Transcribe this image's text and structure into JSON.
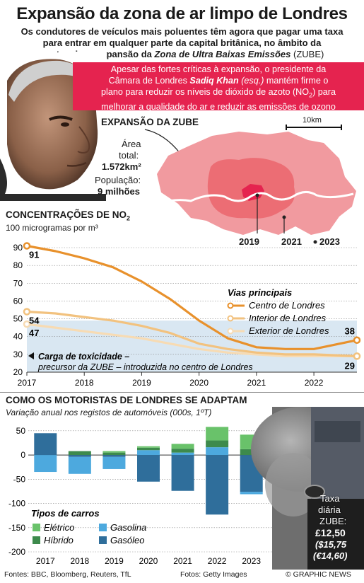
{
  "header": {
    "title": "Expansão da zona de ar limpo de Londres",
    "subtitle_line1": "Os condutores de veículos mais poluentes têm agora que pagar uma taxa",
    "subtitle_line2": "para entrar em qualquer parte da capital britânica, no âmbito da",
    "subtitle_line3_a": "contenciosa expansão da ",
    "subtitle_line3_b": "Zona de Ultra Baixas Emissões",
    "subtitle_line3_c": " (ZUBE)"
  },
  "banner": {
    "line1": "Apesar das fortes críticas à expansão, o presidente da",
    "line2_a": "Câmara de Londres ",
    "line2_b": "Sadiq Khan",
    "line2_c": " (esq.)",
    "line2_d": " mantém firme o",
    "line3": "plano para reduzir os níveis de dióxido de azoto (NO",
    "line3_sub": "2",
    "line3_end": ") para",
    "line4": "melhorar a qualidade do ar e reduzir as emissões de ozono"
  },
  "map": {
    "heading": "EXPANSÃO DA ZUBE",
    "scale": "10km",
    "area_label": "Área",
    "area_label2": "total:",
    "area_value": "1.572km²",
    "population_label": "População:",
    "population_value": "9 milhões",
    "years": [
      "2019",
      "2021",
      "2023"
    ],
    "colors": {
      "zone2023": "#f19a9f",
      "zone2021": "#ec6d74",
      "zone2019": "#e5234f",
      "river": "#ffffff"
    }
  },
  "chart_data": [
    {
      "type": "line",
      "title": "CONCENTRAÇÕES DE NO",
      "title_sub": "2",
      "ylabel": "100 microgramas por m³",
      "x_ticks": [
        "2017",
        "2018",
        "2019",
        "2020",
        "2021",
        "2022"
      ],
      "y_ticks": [
        20,
        30,
        40,
        50,
        60,
        70,
        80,
        90
      ],
      "ylim": [
        20,
        90
      ],
      "xlim": [
        2017,
        2022.75
      ],
      "legend_title": "Vias principais",
      "legend_placement": "right",
      "series": [
        {
          "name": "Centro de Londres",
          "color": "#e8912c",
          "start_label": "91",
          "end_label": "38",
          "x": [
            2017,
            2017.5,
            2018,
            2018.5,
            2019,
            2019.5,
            2020,
            2020.5,
            2021,
            2021.5,
            2022,
            2022.75
          ],
          "y": [
            91,
            88,
            84,
            79,
            71,
            61,
            49,
            39,
            34,
            33,
            33,
            38
          ]
        },
        {
          "name": "Interior de Londres",
          "color": "#f2c27f",
          "start_label": "54",
          "end_label": "",
          "x": [
            2017,
            2017.5,
            2018,
            2018.5,
            2019,
            2019.5,
            2020,
            2020.5,
            2021,
            2021.5,
            2022,
            2022.75
          ],
          "y": [
            54,
            53,
            51,
            49,
            46,
            42,
            36,
            33,
            31,
            30,
            30,
            29
          ]
        },
        {
          "name": "Exterior de Londres",
          "color": "#f7dbb3",
          "start_label": "47",
          "end_label": "29",
          "x": [
            2017,
            2017.5,
            2018,
            2018.5,
            2019,
            2019.5,
            2020,
            2020.5,
            2021,
            2021.5,
            2022,
            2022.75
          ],
          "y": [
            47,
            45,
            43,
            41,
            39,
            36,
            33,
            31,
            30,
            29,
            29,
            29
          ]
        }
      ],
      "annotation_a": "Carga de toxicidade –",
      "annotation_b": "precursor da ZUBE – introduzida no centro de Londres",
      "shade_color": "#d9e7f2"
    },
    {
      "type": "bar",
      "title": "COMO OS MOTORISTAS DE LONDRES SE ADAPTAM",
      "subtitle": "Variação anual nos registos de automóveis (000s, 1ºT)",
      "categories": [
        "2017",
        "2018",
        "2019",
        "2020",
        "2021",
        "2022",
        "2023"
      ],
      "y_ticks": [
        50,
        0,
        -50,
        -100,
        -150,
        -200
      ],
      "ylim": [
        -200,
        60
      ],
      "legend_title": "Tipos de carros",
      "series": [
        {
          "name": "Gasóleo",
          "color": "#2f6e9b",
          "values": [
            45,
            -4,
            -4,
            -55,
            -74,
            -123,
            -76
          ]
        },
        {
          "name": "Gasolina",
          "color": "#4da9de",
          "values": [
            -35,
            -35,
            -25,
            10,
            5,
            16,
            -5
          ]
        },
        {
          "name": "Híbrido",
          "color": "#3d8a4c",
          "values": [
            0,
            8,
            5,
            5,
            8,
            14,
            12
          ]
        },
        {
          "name": "Elétrico",
          "color": "#69c26a",
          "values": [
            0,
            0,
            3,
            3,
            10,
            28,
            30
          ]
        }
      ],
      "tax_label_a": "Taxa",
      "tax_label_b": "diária",
      "tax_label_c": "ZUBE:",
      "tax_value": "£12,50",
      "tax_value_usd": "($15,75",
      "tax_value_eur": "(€14,60)"
    }
  ],
  "footer": {
    "sources": "Fontes: BBC, Bloomberg, Reuters, TfL",
    "photos": "Fotos: Getty Images",
    "credit": "© GRAPHIC NEWS"
  }
}
